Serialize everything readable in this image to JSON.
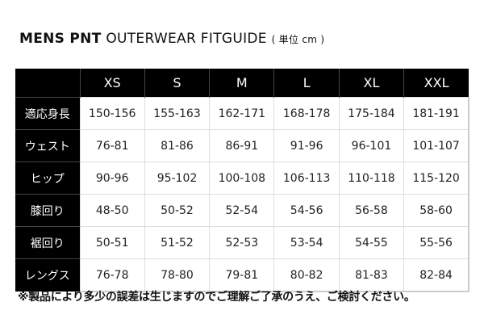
{
  "title": {
    "bold": "MENS PNT",
    "regular": "OUTERWEAR FITGUIDE",
    "unit": "( 単位 cm )"
  },
  "table": {
    "columns": [
      "XS",
      "S",
      "M",
      "L",
      "XL",
      "XXL"
    ],
    "rows": [
      {
        "label": "適応身長",
        "values": [
          "150-156",
          "155-163",
          "162-171",
          "168-178",
          "175-184",
          "181-191"
        ]
      },
      {
        "label": "ウェスト",
        "values": [
          "76-81",
          "81-86",
          "86-91",
          "91-96",
          "96-101",
          "101-107"
        ]
      },
      {
        "label": "ヒップ",
        "values": [
          "90-96",
          "95-102",
          "100-108",
          "106-113",
          "110-118",
          "115-120"
        ]
      },
      {
        "label": "膝回り",
        "values": [
          "48-50",
          "50-52",
          "52-54",
          "54-56",
          "56-58",
          "58-60"
        ]
      },
      {
        "label": "裾回り",
        "values": [
          "50-51",
          "51-52",
          "52-53",
          "53-54",
          "54-55",
          "55-56"
        ]
      },
      {
        "label": "レングス",
        "values": [
          "76-78",
          "78-80",
          "79-81",
          "80-82",
          "81-83",
          "82-84"
        ]
      }
    ]
  },
  "note": "※製品により多少の誤差は生じますのでご理解ご了承のうえ、ご検討ください。",
  "colors": {
    "header_bg": "#000000",
    "header_text": "#ffffff",
    "grid": "#dddddd"
  }
}
